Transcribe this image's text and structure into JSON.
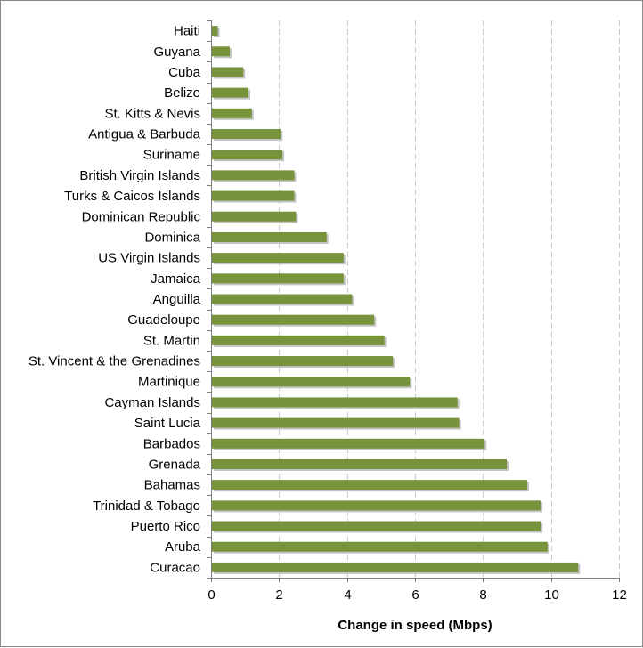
{
  "chart_data": {
    "type": "bar",
    "orientation": "horizontal",
    "categories": [
      "Haiti",
      "Guyana",
      "Cuba",
      "Belize",
      "St. Kitts & Nevis",
      "Antigua & Barbuda",
      "Suriname",
      "British Virgin Islands",
      "Turks & Caicos Islands",
      "Dominican Republic",
      "Dominica",
      "US Virgin Islands",
      "Jamaica",
      "Anguilla",
      "Guadeloupe",
      "St. Martin",
      "St. Vincent & the Grenadines",
      "Martinique",
      "Cayman Islands",
      "Saint Lucia",
      "Barbados",
      "Grenada",
      "Bahamas",
      "Trinidad & Tobago",
      "Puerto Rico",
      "Aruba",
      "Curacao"
    ],
    "values": [
      0.2,
      0.55,
      0.95,
      1.1,
      1.2,
      2.05,
      2.1,
      2.45,
      2.45,
      2.5,
      3.4,
      3.9,
      3.9,
      4.15,
      4.8,
      5.1,
      5.35,
      5.85,
      7.25,
      7.3,
      8.05,
      8.7,
      9.3,
      9.7,
      9.7,
      9.9,
      10.8
    ],
    "xlabel": "Change in speed (Mbps)",
    "ylabel": "",
    "title": "",
    "xlim": [
      0,
      12
    ],
    "xticks": [
      "0",
      "2",
      "4",
      "6",
      "8",
      "10",
      "12"
    ],
    "grid": "vertical dashed",
    "legend": "none",
    "bar_color": "#77933c",
    "bar_shadow_color": "#c4c4c4",
    "grid_color": "#c8c8c8",
    "axis_color": "#7f7f7f"
  }
}
